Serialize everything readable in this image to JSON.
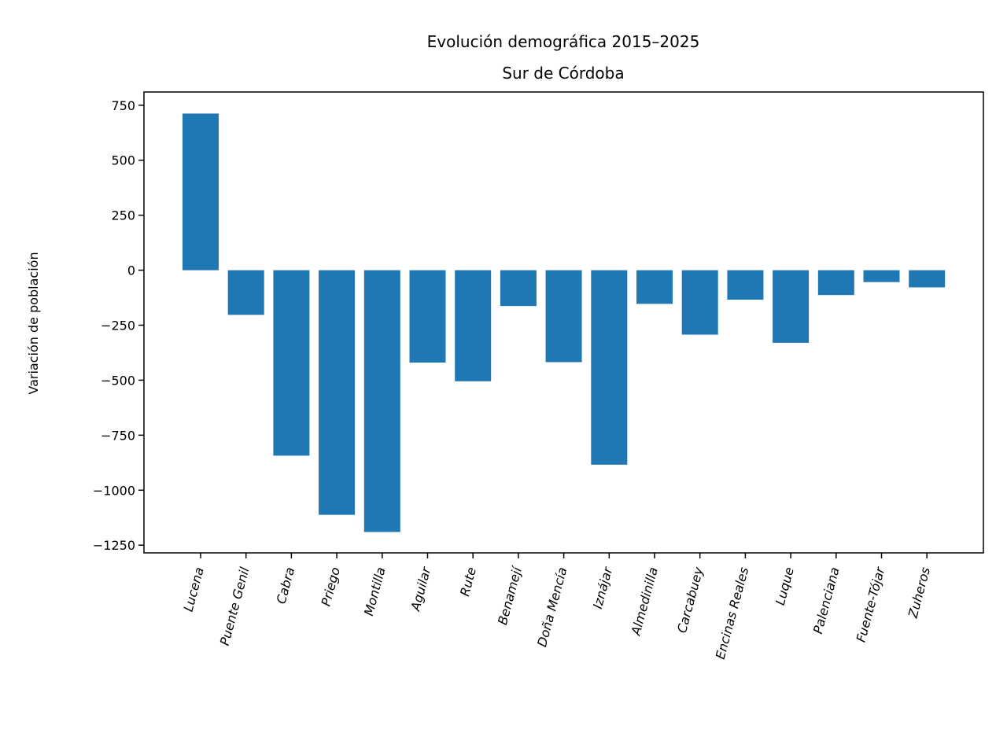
{
  "chart_data": {
    "type": "bar",
    "title": "Evolución demográfica 2015–2025",
    "subtitle": "Sur de Córdoba",
    "xlabel": "",
    "ylabel": "Variación de población",
    "categories": [
      "Lucena",
      "Puente Genil",
      "Cabra",
      "Priego",
      "Montilla",
      "Aguilar",
      "Rute",
      "Benamejí",
      "Doña Mencía",
      "Iznájar",
      "Almedinilla",
      "Carcabuey",
      "Encinas Reales",
      "Luque",
      "Palenciana",
      "Fuente-Tójar",
      "Zuheros"
    ],
    "values": [
      712,
      -203,
      -843,
      -1112,
      -1190,
      -420,
      -505,
      -163,
      -418,
      -884,
      -153,
      -293,
      -134,
      -330,
      -113,
      -54,
      -78
    ],
    "ylim": [
      -1285,
      810
    ],
    "yticks": [
      750,
      500,
      250,
      0,
      -250,
      -500,
      -750,
      -1000,
      -1250
    ],
    "ytick_labels": [
      "750",
      "500",
      "250",
      "0",
      "−250",
      "−500",
      "−750",
      "−1000",
      "−1250"
    ],
    "grid": false,
    "legend": "none",
    "bar_color": "#1f77b4"
  }
}
